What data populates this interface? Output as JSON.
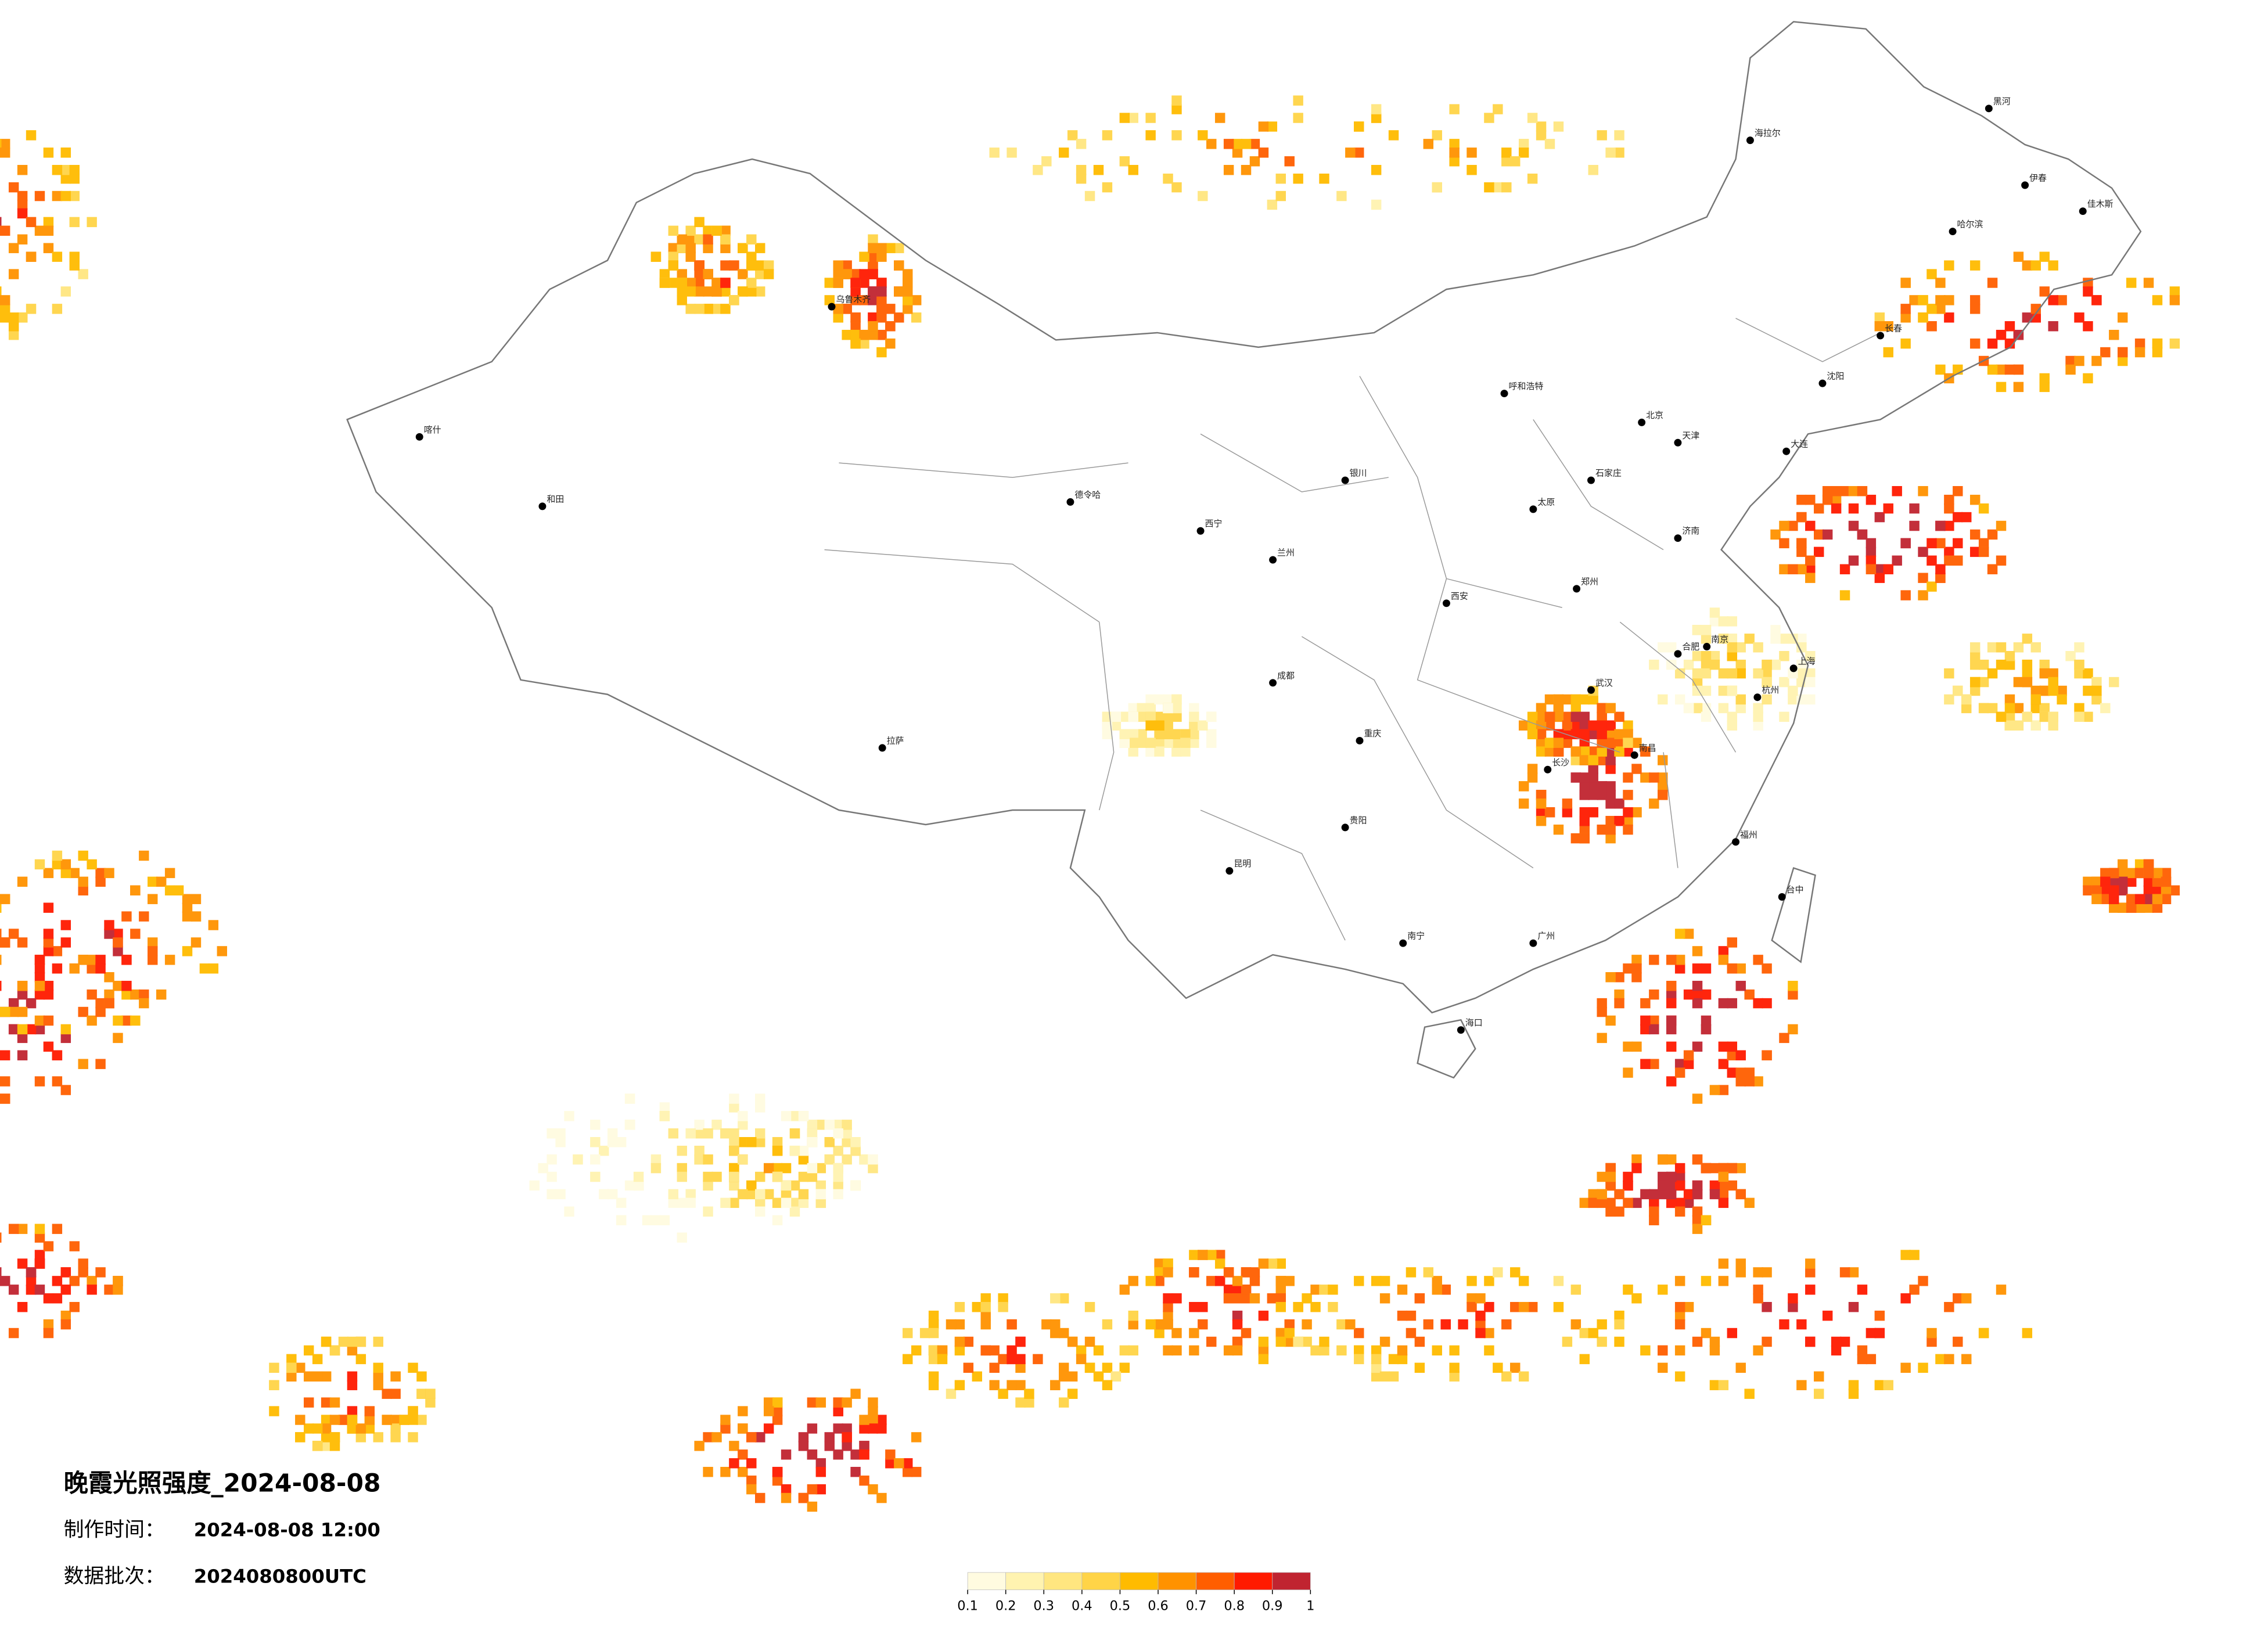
{
  "title": "晚霞光照强度_2024-08-08",
  "made_time": {
    "label": "制作时间：",
    "value": "2024-08-08 12:00"
  },
  "batch": {
    "label": "数据批次：",
    "value": "2024080800UTC"
  },
  "legend": {
    "ticks": [
      0.1,
      0.2,
      0.3,
      0.4,
      0.5,
      0.6,
      0.7,
      0.8,
      0.9,
      1
    ],
    "colors": [
      "#fffbe0",
      "#fff3b0",
      "#ffe680",
      "#ffd447",
      "#ffbb00",
      "#ff9200",
      "#ff5e00",
      "#ff1a00",
      "#c02430"
    ]
  },
  "cities": [
    "哈尔滨",
    "长春",
    "沈阳",
    "大连",
    "北京",
    "天津",
    "石家庄",
    "太原",
    "呼和浩特",
    "济南",
    "郑州",
    "西安",
    "兰州",
    "西宁",
    "银川",
    "乌鲁木齐",
    "拉萨",
    "成都",
    "重庆",
    "武汉",
    "南京",
    "上海",
    "杭州",
    "合肥",
    "长沙",
    "南昌",
    "福州",
    "贵阳",
    "昆明",
    "南宁",
    "广州",
    "海口",
    "台中",
    "喀什",
    "和田",
    "德令哈",
    "海拉尔",
    "黑河",
    "伊春",
    "佳木斯"
  ]
}
